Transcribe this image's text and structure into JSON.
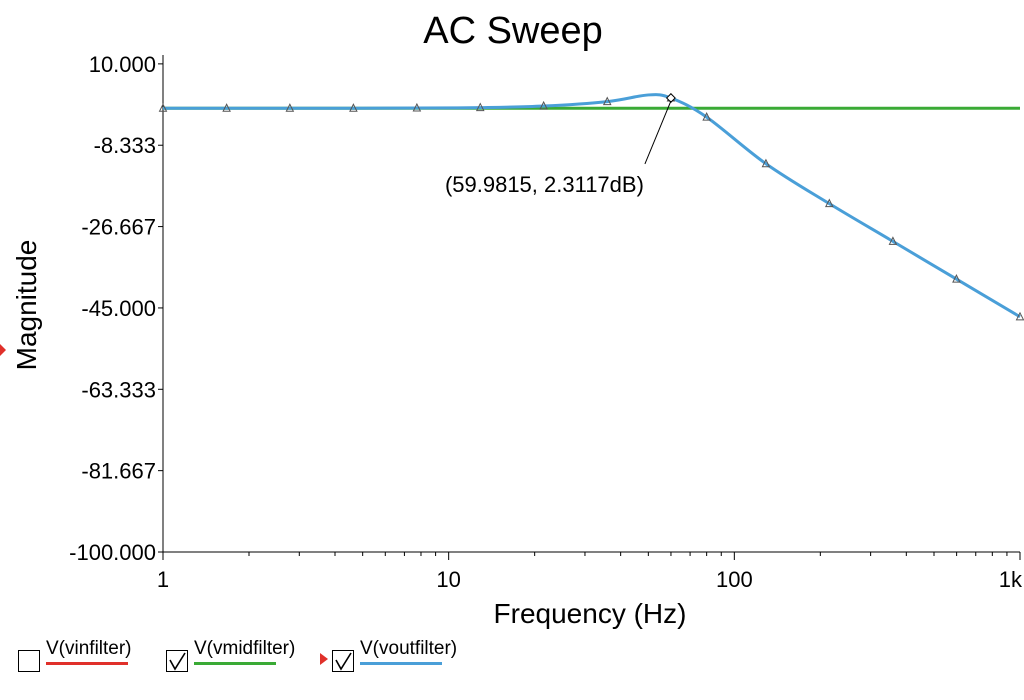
{
  "window": {
    "title": "AC Sweep"
  },
  "chart_data": {
    "type": "line",
    "title": "AC Sweep",
    "xlabel": "Frequency (Hz)",
    "ylabel": "Magnitude",
    "xscale": "log",
    "xlim": [
      1,
      1000
    ],
    "ylim": [
      -100,
      12
    ],
    "x_ticks": [
      1,
      10,
      100,
      1000
    ],
    "x_tick_labels": [
      "1",
      "10",
      "100",
      "1k"
    ],
    "y_ticks": [
      10,
      -8.333,
      -26.667,
      -45,
      -63.333,
      -81.667,
      -100
    ],
    "y_tick_labels": [
      "10.000",
      "-8.333",
      "-26.667",
      "-45.000",
      "-63.333",
      "-81.667",
      "-100.000"
    ],
    "grid": false,
    "legend_placement": "bottom",
    "series": [
      {
        "name": "V(vinfilter)",
        "color": "#e0302a",
        "checked": false,
        "x": [],
        "y": []
      },
      {
        "name": "V(vmidfilter)",
        "color": "#3aaa35",
        "checked": true,
        "x": [
          1,
          1000
        ],
        "y": [
          0,
          0
        ]
      },
      {
        "name": "V(voutfilter)",
        "color": "#4a9fd8",
        "checked": true,
        "selected": true,
        "x": [
          1,
          1.67,
          2.78,
          4.64,
          7.74,
          12.9,
          21.5,
          35.9,
          50,
          59.98,
          80,
          129,
          215,
          359,
          599,
          1000
        ],
        "y": [
          0,
          0,
          0,
          0,
          0.05,
          0.15,
          0.5,
          1.5,
          3.0,
          2.31,
          -2.0,
          -12.5,
          -21.5,
          -30.0,
          -38.5,
          -47.0
        ]
      }
    ],
    "markers": {
      "series": "V(voutfilter)",
      "x": [
        1,
        1.67,
        2.78,
        4.64,
        7.74,
        12.9,
        21.5,
        35.9,
        59.98,
        80,
        129,
        215,
        359,
        599,
        1000
      ]
    },
    "annotations": [
      {
        "text": "(59.9815, 2.3117dB)",
        "x": 59.9815,
        "y": 2.3117
      }
    ]
  }
}
